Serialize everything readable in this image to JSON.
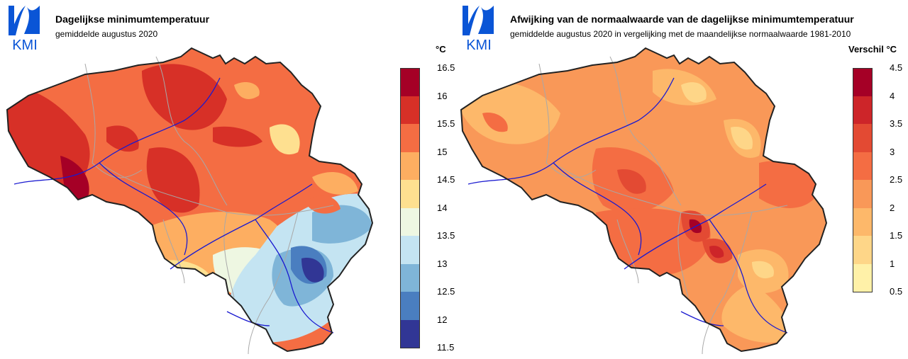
{
  "logo": {
    "text": "KMI",
    "icon": "kmi-logo-icon",
    "color": "#0a55d6"
  },
  "left": {
    "title": "Dagelijkse minimumtemperatuur",
    "subtitle": "gemiddelde augustus 2020",
    "unit": "°C",
    "legend": {
      "labels": [
        "16.5",
        "16",
        "15.5",
        "15",
        "14.5",
        "14",
        "13.5",
        "13",
        "12.5",
        "12",
        "11.5"
      ],
      "colors": [
        "#a50026",
        "#d73027",
        "#f46d43",
        "#fdae61",
        "#fee090",
        "#eef7e2",
        "#c4e4f2",
        "#7fb5d8",
        "#4a7ec0",
        "#313695"
      ]
    }
  },
  "right": {
    "title": "Afwijking van de normaalwaarde van de dagelijkse minimumtemperatuur",
    "subtitle": "gemiddelde augustus 2020 in vergelijking met de maandelijkse normaalwaarde 1981-2010",
    "unit": "Verschil °C",
    "legend": {
      "labels": [
        "4.5",
        "4",
        "3.5",
        "3",
        "2.5",
        "2",
        "1.5",
        "1",
        "0.5"
      ],
      "colors": [
        "#a50026",
        "#cd2529",
        "#e34a33",
        "#f46d43",
        "#f99858",
        "#fdb86a",
        "#fed688",
        "#fff1a8"
      ]
    }
  },
  "colors": {
    "border": "#222222",
    "rivers": "#1a1ad0",
    "provinces": "#a8a8a8"
  }
}
